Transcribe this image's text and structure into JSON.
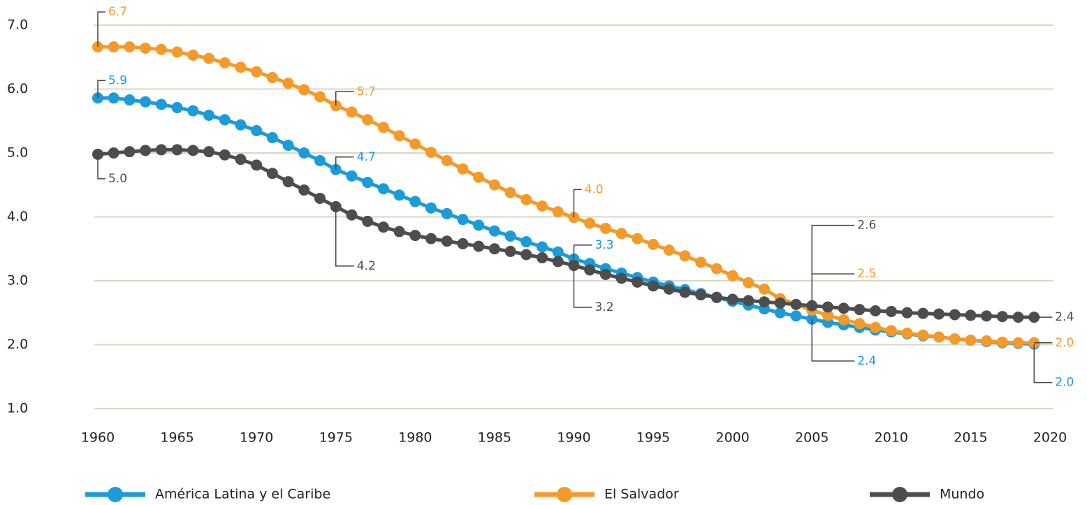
{
  "chart_data": {
    "type": "line",
    "x": [
      1960,
      1961,
      1962,
      1963,
      1964,
      1965,
      1966,
      1967,
      1968,
      1969,
      1970,
      1971,
      1972,
      1973,
      1974,
      1975,
      1976,
      1977,
      1978,
      1979,
      1980,
      1981,
      1982,
      1983,
      1984,
      1985,
      1986,
      1987,
      1988,
      1989,
      1990,
      1991,
      1992,
      1993,
      1994,
      1995,
      1996,
      1997,
      1998,
      1999,
      2000,
      2001,
      2002,
      2003,
      2004,
      2005,
      2006,
      2007,
      2008,
      2009,
      2010,
      2011,
      2012,
      2013,
      2014,
      2015,
      2016,
      2017,
      2018,
      2019
    ],
    "xlim": [
      1960,
      2020
    ],
    "xticks": [
      1960,
      1965,
      1970,
      1975,
      1980,
      1985,
      1990,
      1995,
      2000,
      2005,
      2010,
      2015,
      2020
    ],
    "ylim": [
      1,
      7
    ],
    "yticks": [
      {
        "value": 1,
        "label": "1.0"
      },
      {
        "value": 2,
        "label": "2.0"
      },
      {
        "value": 3,
        "label": "3.0"
      },
      {
        "value": 4,
        "label": "4.0"
      },
      {
        "value": 5,
        "label": "5.0"
      },
      {
        "value": 6,
        "label": "6.0"
      },
      {
        "value": 7,
        "label": "7.0"
      }
    ],
    "grid": true,
    "legend": "bottom",
    "series": [
      {
        "name": "América Latina y el Caribe",
        "color": "#1b9bd7",
        "values": [
          5.86,
          5.86,
          5.83,
          5.8,
          5.76,
          5.71,
          5.66,
          5.59,
          5.52,
          5.44,
          5.35,
          5.24,
          5.12,
          5.0,
          4.88,
          4.74,
          4.64,
          4.54,
          4.44,
          4.34,
          4.24,
          4.14,
          4.05,
          3.96,
          3.87,
          3.78,
          3.7,
          3.61,
          3.53,
          3.45,
          3.34,
          3.27,
          3.19,
          3.12,
          3.05,
          2.98,
          2.92,
          2.86,
          2.8,
          2.74,
          2.68,
          2.62,
          2.56,
          2.5,
          2.45,
          2.4,
          2.35,
          2.31,
          2.27,
          2.23,
          2.2,
          2.17,
          2.14,
          2.12,
          2.09,
          2.07,
          2.05,
          2.03,
          2.02,
          2.01
        ],
        "value_labels": [
          "5.9",
          null,
          null,
          null,
          null,
          null,
          null,
          null,
          null,
          null,
          null,
          null,
          null,
          null,
          null,
          "4.7",
          null,
          null,
          null,
          null,
          null,
          null,
          null,
          null,
          null,
          null,
          null,
          null,
          null,
          null,
          "3.3",
          null,
          null,
          null,
          null,
          null,
          null,
          null,
          null,
          null,
          null,
          null,
          null,
          null,
          null,
          "2.4",
          null,
          null,
          null,
          null,
          null,
          null,
          null,
          null,
          null,
          null,
          null,
          null,
          null,
          "2.0"
        ]
      },
      {
        "name": "El Salvador",
        "color": "#f39a2a",
        "values": [
          6.66,
          6.66,
          6.66,
          6.64,
          6.62,
          6.58,
          6.53,
          6.48,
          6.41,
          6.34,
          6.27,
          6.18,
          6.09,
          5.99,
          5.88,
          5.74,
          5.64,
          5.52,
          5.4,
          5.27,
          5.14,
          5.01,
          4.88,
          4.75,
          4.62,
          4.5,
          4.38,
          4.27,
          4.17,
          4.08,
          3.99,
          3.9,
          3.82,
          3.74,
          3.66,
          3.57,
          3.48,
          3.39,
          3.29,
          3.19,
          3.08,
          2.97,
          2.87,
          2.72,
          2.63,
          2.54,
          2.46,
          2.39,
          2.33,
          2.27,
          2.22,
          2.18,
          2.15,
          2.12,
          2.09,
          2.07,
          2.06,
          2.04,
          2.03,
          2.03
        ],
        "value_labels": [
          "6.7",
          null,
          null,
          null,
          null,
          null,
          null,
          null,
          null,
          null,
          null,
          null,
          null,
          null,
          null,
          "5.7",
          null,
          null,
          null,
          null,
          null,
          null,
          null,
          null,
          null,
          null,
          null,
          null,
          null,
          null,
          "4.0",
          null,
          null,
          null,
          null,
          null,
          null,
          null,
          null,
          null,
          null,
          null,
          null,
          null,
          null,
          "2.5",
          null,
          null,
          null,
          null,
          null,
          null,
          null,
          null,
          null,
          null,
          null,
          null,
          null,
          "2.0"
        ]
      },
      {
        "name": "Mundo",
        "color": "#4d4d4d",
        "values": [
          4.98,
          5.0,
          5.02,
          5.04,
          5.05,
          5.05,
          5.04,
          5.02,
          4.97,
          4.9,
          4.81,
          4.68,
          4.55,
          4.42,
          4.29,
          4.16,
          4.03,
          3.93,
          3.84,
          3.77,
          3.71,
          3.66,
          3.62,
          3.58,
          3.54,
          3.5,
          3.46,
          3.41,
          3.36,
          3.3,
          3.24,
          3.17,
          3.1,
          3.04,
          2.98,
          2.92,
          2.87,
          2.82,
          2.78,
          2.74,
          2.71,
          2.69,
          2.67,
          2.65,
          2.63,
          2.61,
          2.59,
          2.57,
          2.55,
          2.53,
          2.52,
          2.5,
          2.49,
          2.48,
          2.47,
          2.46,
          2.45,
          2.44,
          2.43,
          2.43
        ],
        "value_labels": [
          "5.0",
          null,
          null,
          null,
          null,
          null,
          null,
          null,
          null,
          null,
          null,
          null,
          null,
          null,
          null,
          "4.2",
          null,
          null,
          null,
          null,
          null,
          null,
          null,
          null,
          null,
          null,
          null,
          null,
          null,
          null,
          "3.2",
          null,
          null,
          null,
          null,
          null,
          null,
          null,
          null,
          null,
          null,
          null,
          null,
          null,
          null,
          "2.6",
          null,
          null,
          null,
          null,
          null,
          null,
          null,
          null,
          null,
          null,
          null,
          null,
          null,
          "2.4"
        ]
      }
    ]
  }
}
